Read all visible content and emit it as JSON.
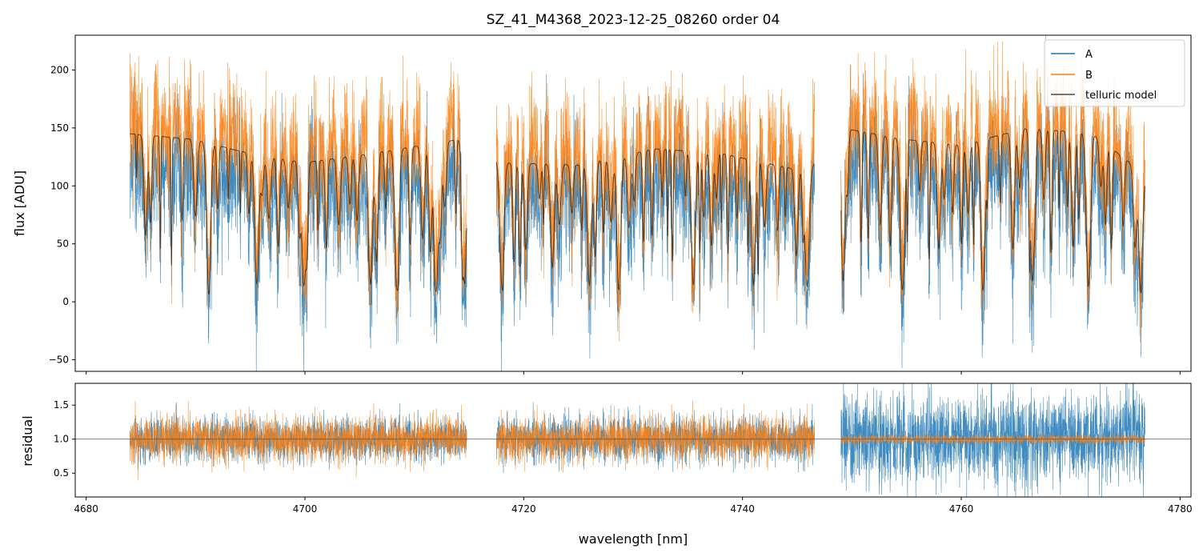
{
  "chart_data": [
    {
      "type": "line",
      "panel": "main",
      "title": "SZ_41_M4368_2023-12-25_08260  order 04",
      "xlabel": "",
      "ylabel": "flux [ADU]",
      "xlim": [
        4679,
        4781
      ],
      "ylim": [
        -60,
        230
      ],
      "xticks": [
        4680,
        4700,
        4720,
        4740,
        4760,
        4780
      ],
      "yticks": [
        -50,
        0,
        50,
        100,
        150,
        200
      ],
      "ytick_labels": [
        "−50",
        "0",
        "50",
        "100",
        "150",
        "200"
      ],
      "segments": [
        [
          4684.0,
          4714.8
        ],
        [
          4717.5,
          4746.6
        ],
        [
          4749.0,
          4776.8
        ]
      ],
      "series": [
        {
          "name": "A",
          "color": "#1f77b4",
          "description": "observed flux, noisy",
          "approx_level": 100,
          "approx_noise": 45
        },
        {
          "name": "B",
          "color": "#ff7f0e",
          "description": "observed flux, noisy",
          "approx_level": 115,
          "approx_noise": 45
        },
        {
          "name": "telluric model",
          "color": "#000000",
          "description": "smooth model with absorption lines",
          "continuum": [
            {
              "x": 4684.0,
              "y": 145
            },
            {
              "x": 4690.0,
              "y": 140
            },
            {
              "x": 4694.0,
              "y": 130
            },
            {
              "x": 4700.0,
              "y": 120
            },
            {
              "x": 4706.0,
              "y": 128
            },
            {
              "x": 4714.0,
              "y": 140
            },
            {
              "x": 4718.0,
              "y": 120
            },
            {
              "x": 4725.0,
              "y": 118
            },
            {
              "x": 4732.0,
              "y": 132
            },
            {
              "x": 4738.0,
              "y": 128
            },
            {
              "x": 4746.0,
              "y": 112
            },
            {
              "x": 4749.0,
              "y": 150
            },
            {
              "x": 4755.0,
              "y": 140
            },
            {
              "x": 4760.0,
              "y": 135
            },
            {
              "x": 4766.0,
              "y": 150
            },
            {
              "x": 4772.0,
              "y": 145
            },
            {
              "x": 4776.8,
              "y": 110
            }
          ]
        }
      ],
      "legend": {
        "position": "top-right",
        "entries": [
          "A",
          "B",
          "telluric model"
        ]
      }
    },
    {
      "type": "line",
      "panel": "residual",
      "xlabel": "wavelength [nm]",
      "ylabel": "residual",
      "xlim": [
        4679,
        4781
      ],
      "ylim": [
        0.15,
        1.82
      ],
      "xticks": [
        4680,
        4700,
        4720,
        4740,
        4760,
        4780
      ],
      "yticks": [
        0.5,
        1.0,
        1.5
      ],
      "ytick_labels": [
        "0.5",
        "1.0",
        "1.5"
      ],
      "reference_line": 1.0,
      "segments": [
        [
          4684.0,
          4714.8
        ],
        [
          4717.5,
          4746.6
        ],
        [
          4749.0,
          4776.8
        ]
      ],
      "series": [
        {
          "name": "A",
          "color": "#1f77b4",
          "approx_center": 1.0,
          "approx_spread": [
            0.28,
            0.3,
            0.6
          ]
        },
        {
          "name": "B",
          "color": "#ff7f0e",
          "approx_center": 1.0,
          "approx_spread": [
            0.3,
            0.3,
            0.06
          ]
        }
      ]
    }
  ]
}
